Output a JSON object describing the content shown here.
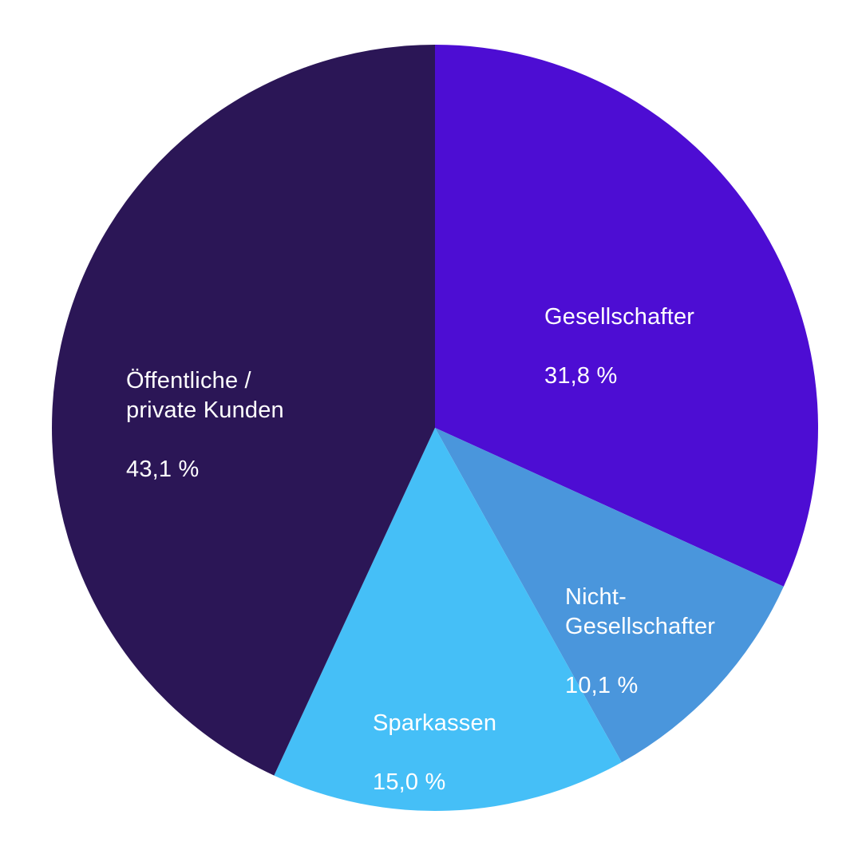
{
  "page": {
    "background_color": "#ffffff",
    "label_text_color": "#ffffff"
  },
  "chart_data": {
    "type": "pie",
    "title": "",
    "legend": "none",
    "start_angle_deg": 0,
    "direction": "clockwise",
    "slices": [
      {
        "id": "gesellschafter",
        "label": "Gesellschafter",
        "value": 31.8,
        "display": "31,8 %",
        "color": "#4D0DD3"
      },
      {
        "id": "nicht-gesellschafter",
        "label": "Nicht-\nGesellschafter",
        "value": 10.1,
        "display": "10,1 %",
        "color": "#4A96DC"
      },
      {
        "id": "sparkassen",
        "label": "Sparkassen",
        "value": 15.0,
        "display": "15,0 %",
        "color": "#45BFF7"
      },
      {
        "id": "oeffentliche-private-kunden",
        "label": "Öffentliche /\nprivate Kunden",
        "value": 43.1,
        "display": "43,1 %",
        "color": "#2B1656"
      }
    ]
  }
}
